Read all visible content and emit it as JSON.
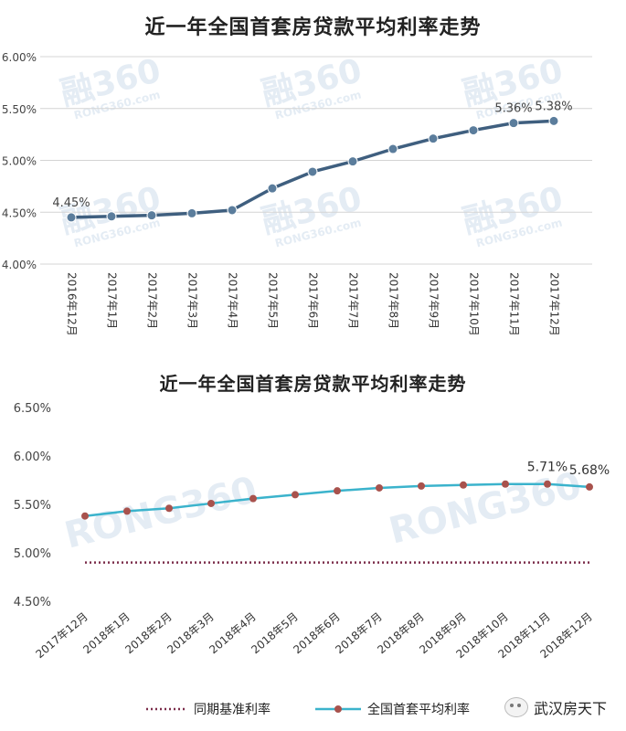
{
  "chart_data": [
    {
      "type": "line",
      "title": "近一年全国首套房贷款平均利率走势",
      "categories": [
        "2016年12月",
        "2017年1月",
        "2017年2月",
        "2017年3月",
        "2017年4月",
        "2017年5月",
        "2017年6月",
        "2017年7月",
        "2017年8月",
        "2017年9月",
        "2017年10月",
        "2017年11月",
        "2017年12月"
      ],
      "series": [
        {
          "values": [
            4.45,
            4.46,
            4.47,
            4.49,
            4.52,
            4.73,
            4.89,
            4.99,
            5.11,
            5.21,
            5.29,
            5.36,
            5.38
          ],
          "color": "#3f5f7f"
        }
      ],
      "data_labels": [
        {
          "index": 0,
          "text": "4.45%"
        },
        {
          "index": 11,
          "text": "5.36%"
        },
        {
          "index": 12,
          "text": "5.38%"
        }
      ],
      "ylim": [
        4.0,
        6.0
      ],
      "yticks": [
        "4.00%",
        "4.50%",
        "5.00%",
        "5.50%",
        "6.00%"
      ],
      "grid": true,
      "watermark": "融360 RONG360.com"
    },
    {
      "type": "line",
      "title": "近一年全国首套房贷款平均利率走势",
      "categories": [
        "2017年12月",
        "2018年1月",
        "2018年2月",
        "2018年3月",
        "2018年4月",
        "2018年5月",
        "2018年6月",
        "2018年7月",
        "2018年8月",
        "2018年9月",
        "2018年10月",
        "2018年11月",
        "2018年12月"
      ],
      "series": [
        {
          "name": "同期基准利率",
          "values": [
            4.9,
            4.9,
            4.9,
            4.9,
            4.9,
            4.9,
            4.9,
            4.9,
            4.9,
            4.9,
            4.9,
            4.9,
            4.9
          ],
          "color": "#7b2d4a",
          "style": "dotted"
        },
        {
          "name": "全国首套平均利率",
          "values": [
            5.38,
            5.43,
            5.46,
            5.51,
            5.56,
            5.6,
            5.64,
            5.67,
            5.69,
            5.7,
            5.71,
            5.71,
            5.68
          ],
          "color": "#3bb3cc",
          "marker_color": "#a8524d"
        }
      ],
      "data_labels": [
        {
          "index": 11,
          "text": "5.71%"
        },
        {
          "index": 12,
          "text": "5.68%"
        }
      ],
      "ylim": [
        4.5,
        6.5
      ],
      "yticks": [
        "4.50%",
        "5.00%",
        "5.50%",
        "6.00%",
        "6.50%"
      ],
      "grid": false,
      "legend_position": "bottom",
      "watermark": "RONG360"
    }
  ],
  "footer": {
    "brand": "武汉房天下",
    "icon": "wechat-icon"
  }
}
